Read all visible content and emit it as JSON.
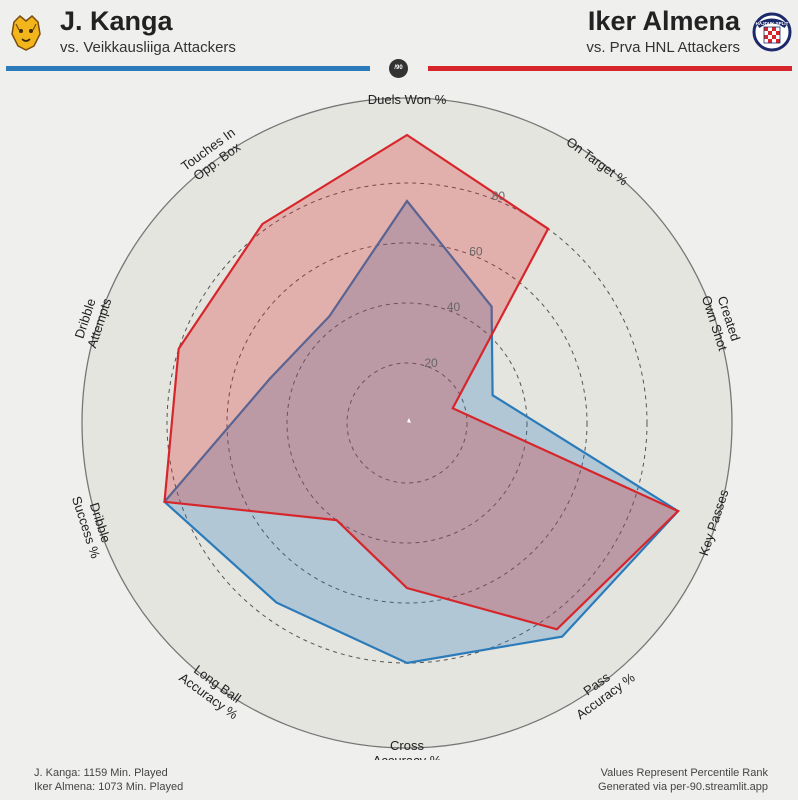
{
  "header": {
    "player1": {
      "name": "J. Kanga",
      "comparison": "vs. Veikkausliiga Attackers",
      "color": "#2b7bba"
    },
    "player2": {
      "name": "Iker Almena",
      "comparison": "vs. Prva HNL Attackers",
      "color": "#d7262b"
    },
    "badge": "/90",
    "logo1_icon": "lion-crest-icon",
    "logo2_icon": "checkered-crest-icon",
    "logo2_text": "HAJDUK SPLIT"
  },
  "chart_data": {
    "type": "radar",
    "categories": [
      "Duels Won %",
      "On Target %",
      "Created Own Shot",
      "Key Passes",
      "Pass Accuracy %",
      "Cross Accuracy %",
      "Long Ball Accuracy %",
      "Dribble Success %",
      "Dribble Attempts",
      "Touches In Opp. Box"
    ],
    "label_lines": [
      [
        "Duels Won %"
      ],
      [
        "On Target %"
      ],
      [
        "Created",
        "Own Shot"
      ],
      [
        "Key Passes"
      ],
      [
        "Pass",
        "Accuracy %"
      ],
      [
        "Cross",
        "Accuracy %"
      ],
      [
        "Long Ball",
        "Accuracy %"
      ],
      [
        "Dribble",
        "Success %"
      ],
      [
        "Dribble",
        "Attempts"
      ],
      [
        "Touches In",
        "Opp. Box"
      ]
    ],
    "series": [
      {
        "player": "J. Kanga",
        "color": "#2b7bba",
        "fill": "rgba(43,123,186,0.28)",
        "values": [
          74,
          48,
          30,
          95,
          88,
          80,
          74,
          85,
          48,
          44
        ]
      },
      {
        "player": "Iker Almena",
        "color": "#d7262b",
        "fill": "rgba(215,38,43,0.28)",
        "values": [
          96,
          80,
          16,
          95,
          85,
          55,
          40,
          85,
          80,
          82
        ]
      }
    ],
    "rlim": [
      0,
      100
    ],
    "r_ticks": [
      "20",
      "40",
      "60",
      "80"
    ],
    "grid": "dashed-rings"
  },
  "footer": {
    "left_line1": "J. Kanga: 1159 Min. Played",
    "left_line2": "Iker Almena: 1073 Min. Played",
    "right_line1": "Values Represent Percentile Rank",
    "right_line2": "Generated via per-90.streamlit.app"
  }
}
